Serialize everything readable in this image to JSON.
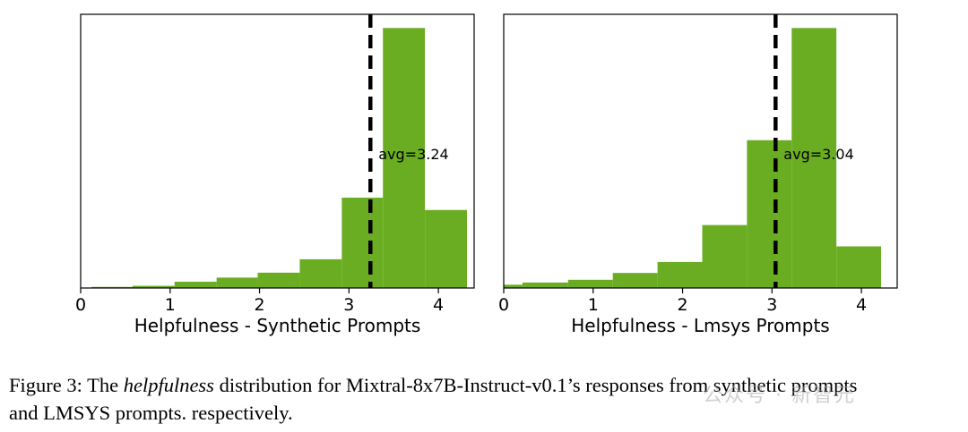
{
  "colors": {
    "bar": "#6aad22",
    "avg_line": "#000000"
  },
  "chart_data": [
    {
      "type": "bar",
      "xlabel": "Helpfulness - Synthetic Prompts",
      "ylabel": "",
      "xlim": [
        0,
        4.4
      ],
      "ylim": [
        0,
        1.0
      ],
      "xticks": [
        0,
        1,
        2,
        3,
        4
      ],
      "yticks_visible": false,
      "bins": [
        {
          "start": 0.12,
          "end": 0.58,
          "value": 0.004
        },
        {
          "start": 0.58,
          "end": 1.05,
          "value": 0.008
        },
        {
          "start": 1.05,
          "end": 1.52,
          "value": 0.023
        },
        {
          "start": 1.52,
          "end": 1.98,
          "value": 0.038
        },
        {
          "start": 1.98,
          "end": 2.45,
          "value": 0.056
        },
        {
          "start": 2.45,
          "end": 2.92,
          "value": 0.105
        },
        {
          "start": 2.92,
          "end": 3.38,
          "value": 0.33
        },
        {
          "start": 3.38,
          "end": 3.85,
          "value": 0.95
        },
        {
          "start": 3.85,
          "end": 4.32,
          "value": 0.285
        }
      ],
      "avg": 3.24,
      "avg_label": "avg=3.24"
    },
    {
      "type": "bar",
      "xlabel": "Helpfulness - Lmsys Prompts",
      "ylabel": "",
      "xlim": [
        0,
        4.4
      ],
      "ylim": [
        0,
        1.0
      ],
      "xticks": [
        0,
        1,
        2,
        3,
        4
      ],
      "yticks_visible": false,
      "bins": [
        {
          "start": 0.0,
          "end": 0.21,
          "value": 0.012
        },
        {
          "start": 0.21,
          "end": 0.72,
          "value": 0.02
        },
        {
          "start": 0.72,
          "end": 1.22,
          "value": 0.03
        },
        {
          "start": 1.22,
          "end": 1.72,
          "value": 0.055
        },
        {
          "start": 1.72,
          "end": 2.22,
          "value": 0.095
        },
        {
          "start": 2.22,
          "end": 2.72,
          "value": 0.23
        },
        {
          "start": 2.72,
          "end": 3.22,
          "value": 0.54
        },
        {
          "start": 3.22,
          "end": 3.72,
          "value": 0.95
        },
        {
          "start": 3.72,
          "end": 4.22,
          "value": 0.152
        }
      ],
      "avg": 3.04,
      "avg_label": "avg=3.04"
    }
  ],
  "caption": {
    "label": "Figure 3:  The ",
    "italic": "helpfulness",
    "rest_line1": " distribution for Mixtral-8x7B-Instruct-v0.1’s responses from synthetic prompts",
    "line2": "and LMSYS prompts. respectively."
  },
  "watermark": "公众号 · 新智元"
}
